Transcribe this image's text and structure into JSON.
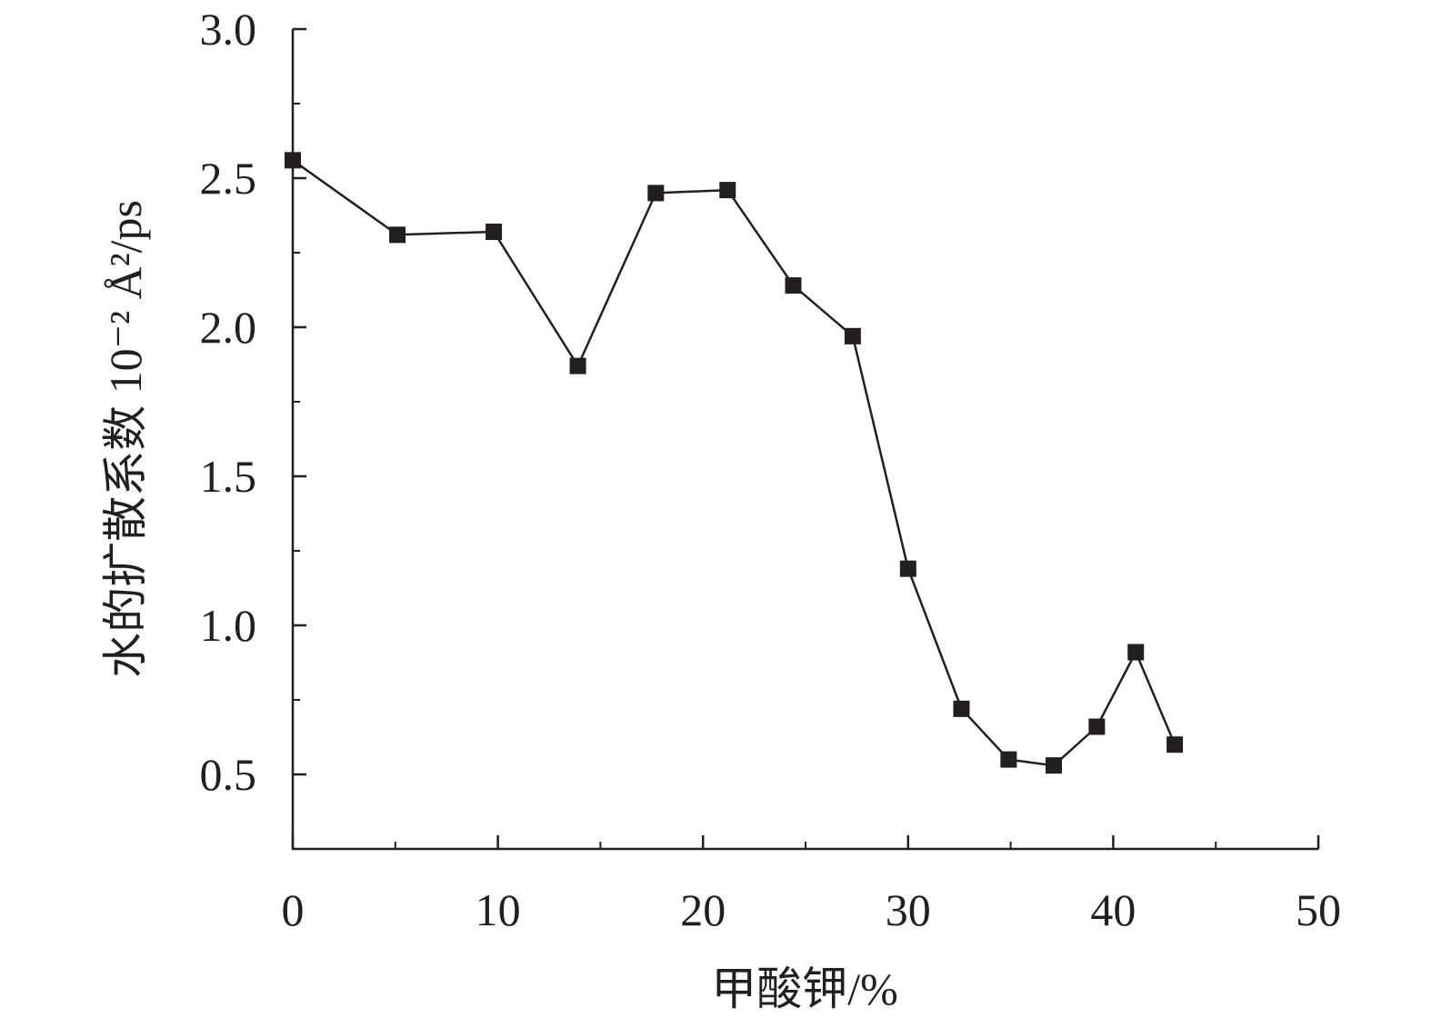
{
  "chart_data": {
    "type": "line",
    "title": "",
    "xlabel": "甲酸钾/%",
    "ylabel": "水的扩散系数 10⁻² Å²/ps",
    "xlim": [
      0,
      50
    ],
    "ylim": [
      0.25,
      3.0
    ],
    "x_ticks": [
      0,
      10,
      20,
      30,
      40,
      50
    ],
    "x_tick_labels": [
      "0",
      "10",
      "20",
      "30",
      "40",
      "50"
    ],
    "x_minor_ticks": [
      5,
      15,
      25,
      35,
      45
    ],
    "y_ticks": [
      0.5,
      1.0,
      1.5,
      2.0,
      2.5,
      3.0
    ],
    "y_tick_labels": [
      "0.5",
      "1.0",
      "1.5",
      "2.0",
      "2.5",
      "3.0"
    ],
    "y_minor_ticks": [
      0.75,
      1.25,
      1.75,
      2.25,
      2.75
    ],
    "grid": false,
    "legend": "none",
    "marker": "square",
    "color": "#231f20",
    "series": [
      {
        "x": [
          0,
          5.1,
          9.8,
          13.9,
          17.7,
          21.2,
          24.4,
          27.3,
          30.0,
          32.6,
          34.9,
          37.1,
          39.2,
          41.1,
          43.0
        ],
        "y": [
          2.56,
          2.31,
          2.32,
          1.87,
          2.45,
          2.46,
          2.14,
          1.97,
          1.19,
          0.72,
          0.55,
          0.53,
          0.66,
          0.91,
          0.6
        ]
      }
    ]
  }
}
